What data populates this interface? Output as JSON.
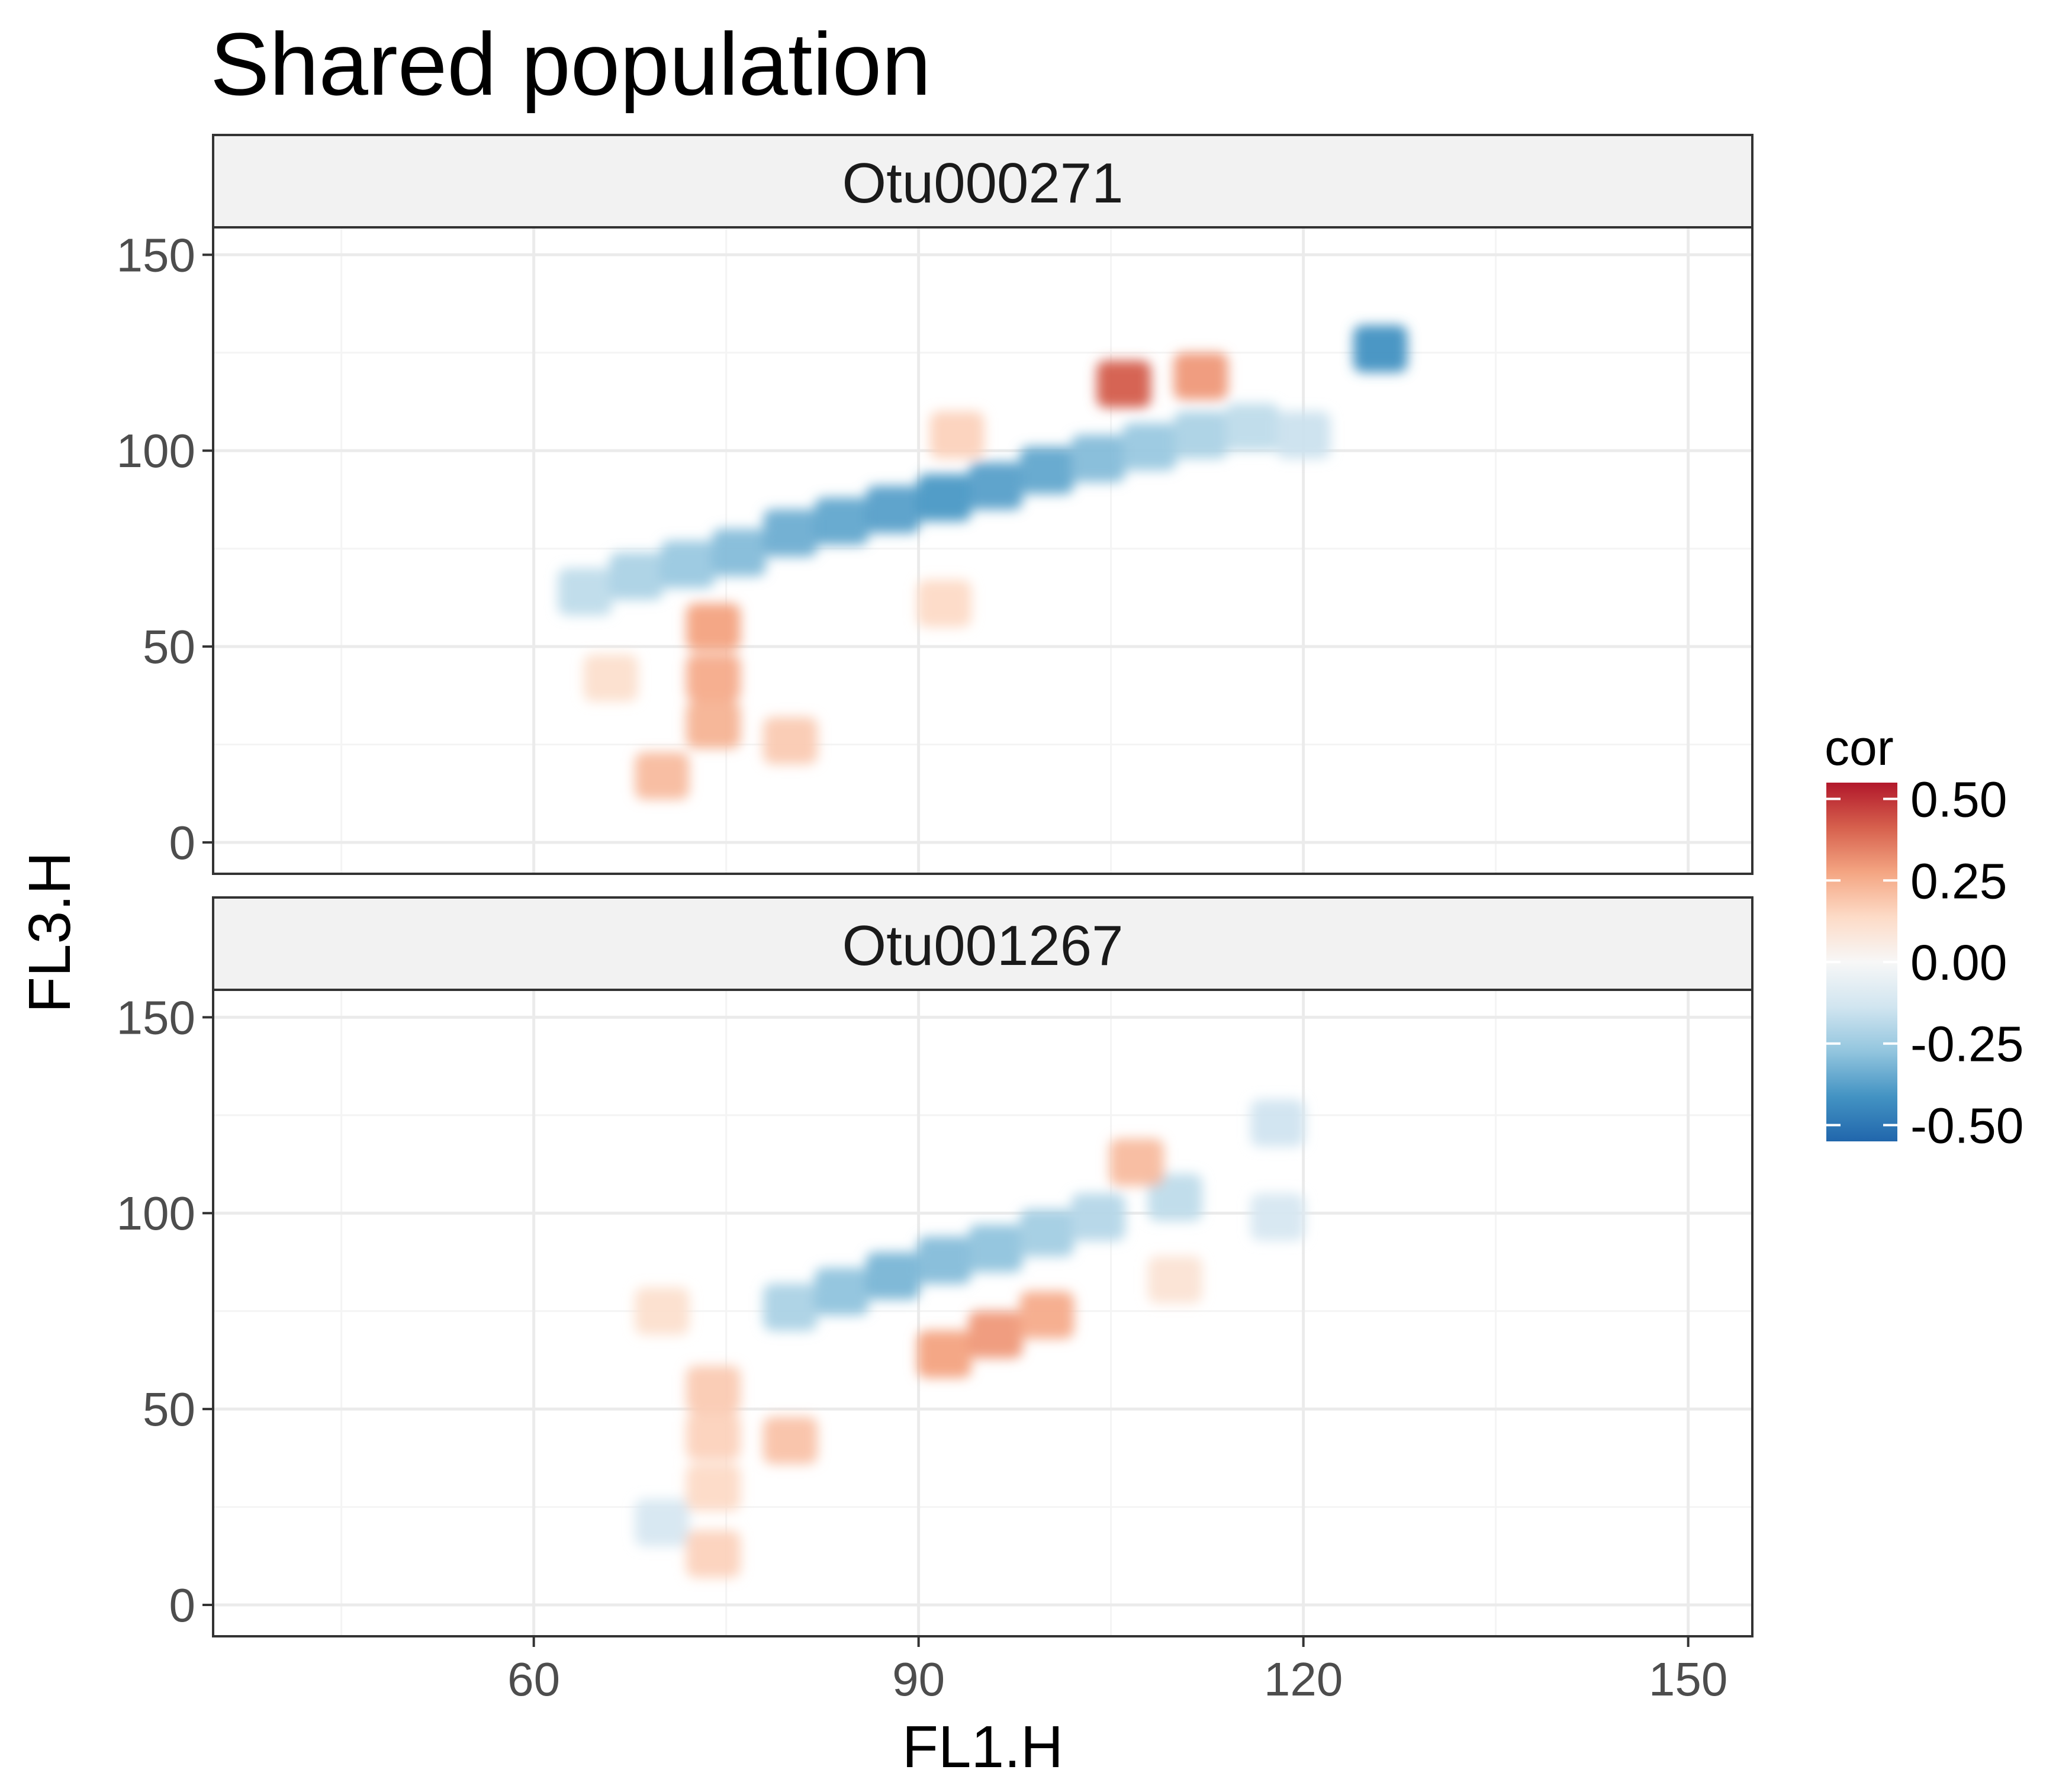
{
  "chart_data": {
    "type": "heatmap",
    "title": "Shared population",
    "xlabel": "FL1.H",
    "ylabel": "FL3.H",
    "xlim": [
      35,
      155
    ],
    "ylim": [
      -8,
      157
    ],
    "x_ticks": [
      60,
      90,
      120,
      150
    ],
    "y_ticks": [
      0,
      50,
      100,
      150
    ],
    "legend": {
      "title": "cor",
      "position": "right",
      "range": [
        -0.55,
        0.55
      ],
      "breaks": [
        0.5,
        0.25,
        0.0,
        -0.25,
        -0.5
      ],
      "break_labels": [
        "0.50",
        "0.25",
        "0.00",
        "-0.25",
        "-0.50"
      ],
      "colors": [
        "#2166ac",
        "#4393c3",
        "#92c5de",
        "#d1e5f0",
        "#f7f7f7",
        "#fddbc7",
        "#f4a582",
        "#d6604d",
        "#b2182b"
      ]
    },
    "panels": [
      {
        "name": "Otu000271",
        "regions": [
          {
            "x": 64,
            "y": 64,
            "cor": -0.18
          },
          {
            "x": 68,
            "y": 68,
            "cor": -0.22
          },
          {
            "x": 72,
            "y": 71,
            "cor": -0.26
          },
          {
            "x": 76,
            "y": 74,
            "cor": -0.3
          },
          {
            "x": 80,
            "y": 79,
            "cor": -0.34
          },
          {
            "x": 84,
            "y": 82,
            "cor": -0.36
          },
          {
            "x": 88,
            "y": 85,
            "cor": -0.38
          },
          {
            "x": 92,
            "y": 88,
            "cor": -0.4
          },
          {
            "x": 96,
            "y": 91,
            "cor": -0.38
          },
          {
            "x": 100,
            "y": 95,
            "cor": -0.36
          },
          {
            "x": 104,
            "y": 98,
            "cor": -0.3
          },
          {
            "x": 108,
            "y": 101,
            "cor": -0.26
          },
          {
            "x": 112,
            "y": 104,
            "cor": -0.22
          },
          {
            "x": 116,
            "y": 106,
            "cor": -0.18
          },
          {
            "x": 120,
            "y": 104,
            "cor": -0.15
          },
          {
            "x": 126,
            "y": 126,
            "cor": -0.42
          },
          {
            "x": 106,
            "y": 117,
            "cor": 0.42
          },
          {
            "x": 112,
            "y": 119,
            "cor": 0.3
          },
          {
            "x": 74,
            "y": 55,
            "cor": 0.28
          },
          {
            "x": 74,
            "y": 42,
            "cor": 0.26
          },
          {
            "x": 74,
            "y": 30,
            "cor": 0.24
          },
          {
            "x": 70,
            "y": 17,
            "cor": 0.22
          },
          {
            "x": 66,
            "y": 42,
            "cor": 0.12
          },
          {
            "x": 80,
            "y": 26,
            "cor": 0.18
          },
          {
            "x": 92,
            "y": 61,
            "cor": 0.14
          },
          {
            "x": 93,
            "y": 104,
            "cor": 0.16
          }
        ]
      },
      {
        "name": "Otu001267",
        "regions": [
          {
            "x": 80,
            "y": 76,
            "cor": -0.22
          },
          {
            "x": 84,
            "y": 80,
            "cor": -0.28
          },
          {
            "x": 88,
            "y": 84,
            "cor": -0.32
          },
          {
            "x": 92,
            "y": 88,
            "cor": -0.3
          },
          {
            "x": 96,
            "y": 91,
            "cor": -0.28
          },
          {
            "x": 100,
            "y": 95,
            "cor": -0.24
          },
          {
            "x": 104,
            "y": 99,
            "cor": -0.2
          },
          {
            "x": 110,
            "y": 104,
            "cor": -0.18
          },
          {
            "x": 118,
            "y": 99,
            "cor": -0.12
          },
          {
            "x": 118,
            "y": 123,
            "cor": -0.14
          },
          {
            "x": 70,
            "y": 21,
            "cor": -0.12
          },
          {
            "x": 92,
            "y": 64,
            "cor": 0.28
          },
          {
            "x": 96,
            "y": 69,
            "cor": 0.3
          },
          {
            "x": 100,
            "y": 74,
            "cor": 0.26
          },
          {
            "x": 74,
            "y": 55,
            "cor": 0.18
          },
          {
            "x": 74,
            "y": 43,
            "cor": 0.16
          },
          {
            "x": 74,
            "y": 30,
            "cor": 0.14
          },
          {
            "x": 74,
            "y": 13,
            "cor": 0.16
          },
          {
            "x": 80,
            "y": 42,
            "cor": 0.2
          },
          {
            "x": 107,
            "y": 113,
            "cor": 0.22
          },
          {
            "x": 110,
            "y": 83,
            "cor": 0.1
          },
          {
            "x": 70,
            "y": 75,
            "cor": 0.12
          }
        ]
      }
    ]
  }
}
